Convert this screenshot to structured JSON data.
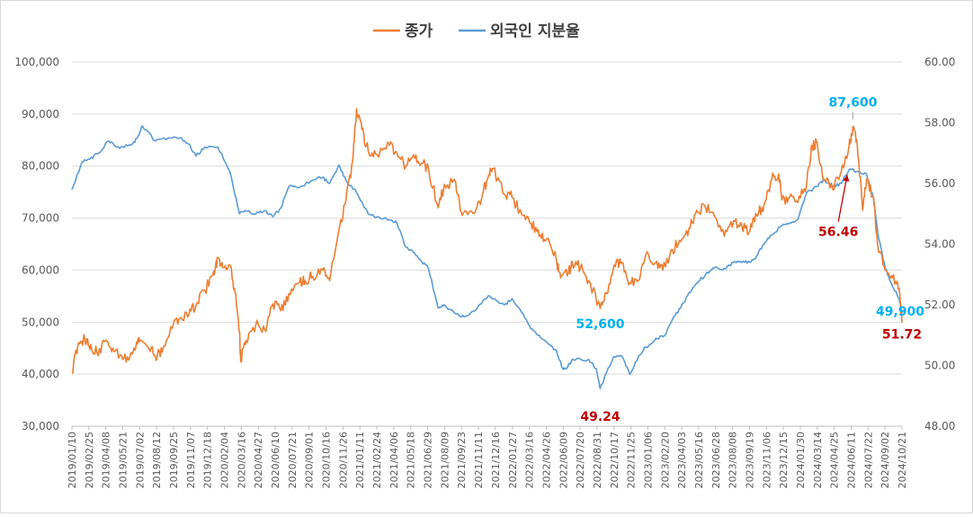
{
  "chart_data": {
    "type": "line",
    "title": "",
    "legend_position": "top",
    "grid": true,
    "series": [
      {
        "name": "종가",
        "axis": "left",
        "color": "#ed7d31",
        "points": [
          [
            "2019/01/10",
            40200
          ],
          [
            "2019/01/25",
            45500
          ],
          [
            "2019/02/12",
            46800
          ],
          [
            "2019/02/25",
            44800
          ],
          [
            "2019/03/15",
            44200
          ],
          [
            "2019/04/08",
            46500
          ],
          [
            "2019/04/25",
            45000
          ],
          [
            "2019/05/21",
            42800
          ],
          [
            "2019/06/10",
            44000
          ],
          [
            "2019/06/25",
            46000
          ],
          [
            "2019/07/02",
            46200
          ],
          [
            "2019/07/25",
            45200
          ],
          [
            "2019/08/12",
            43500
          ],
          [
            "2019/08/30",
            44200
          ],
          [
            "2019/09/25",
            48800
          ],
          [
            "2019/10/15",
            50800
          ],
          [
            "2019/11/07",
            51500
          ],
          [
            "2019/11/25",
            53200
          ],
          [
            "2019/12/18",
            56000
          ],
          [
            "2020/01/10",
            59800
          ],
          [
            "2020/01/20",
            62300
          ],
          [
            "2020/02/04",
            60500
          ],
          [
            "2020/02/20",
            61000
          ],
          [
            "2020/03/05",
            55500
          ],
          [
            "2020/03/16",
            48000
          ],
          [
            "2020/03/19",
            42500
          ],
          [
            "2020/04/02",
            46500
          ],
          [
            "2020/04/27",
            49500
          ],
          [
            "2020/05/20",
            48500
          ],
          [
            "2020/06/10",
            53500
          ],
          [
            "2020/06/30",
            52200
          ],
          [
            "2020/07/21",
            55500
          ],
          [
            "2020/08/15",
            57500
          ],
          [
            "2020/09/01",
            58000
          ],
          [
            "2020/09/20",
            58800
          ],
          [
            "2020/10/16",
            60000
          ],
          [
            "2020/11/03",
            58000
          ],
          [
            "2020/11/26",
            67500
          ],
          [
            "2020/12/15",
            73500
          ],
          [
            "2021/01/01",
            81000
          ],
          [
            "2021/01/11",
            91000
          ],
          [
            "2021/01/25",
            87000
          ],
          [
            "2021/02/10",
            83000
          ],
          [
            "2021/03/05",
            82200
          ],
          [
            "2021/04/06",
            84000
          ],
          [
            "2021/04/25",
            82500
          ],
          [
            "2021/05/18",
            80000
          ],
          [
            "2021/06/10",
            81500
          ],
          [
            "2021/06/29",
            80500
          ],
          [
            "2021/07/15",
            79500
          ],
          [
            "2021/08/09",
            72000
          ],
          [
            "2021/08/25",
            76500
          ],
          [
            "2021/09/23",
            77000
          ],
          [
            "2021/10/10",
            70500
          ],
          [
            "2021/11/11",
            71000
          ],
          [
            "2021/12/01",
            74500
          ],
          [
            "2021/12/16",
            78000
          ],
          [
            "2021/12/28",
            79500
          ],
          [
            "2022/01/27",
            74500
          ],
          [
            "2022/02/15",
            74000
          ],
          [
            "2022/03/16",
            70500
          ],
          [
            "2022/04/05",
            69000
          ],
          [
            "2022/04/26",
            66500
          ],
          [
            "2022/05/15",
            66000
          ],
          [
            "2022/06/09",
            62000
          ],
          [
            "2022/06/20",
            58500
          ],
          [
            "2022/07/10",
            59500
          ],
          [
            "2022/07/20",
            61500
          ],
          [
            "2022/08/10",
            60500
          ],
          [
            "2022/08/31",
            58000
          ],
          [
            "2022/09/30",
            52600
          ],
          [
            "2022/10/17",
            55500
          ],
          [
            "2022/11/05",
            61000
          ],
          [
            "2022/11/25",
            61500
          ],
          [
            "2022/12/15",
            57500
          ],
          [
            "2023/01/06",
            58000
          ],
          [
            "2023/01/25",
            63000
          ],
          [
            "2023/02/20",
            61500
          ],
          [
            "2023/03/10",
            60000
          ],
          [
            "2023/04/03",
            64000
          ],
          [
            "2023/04/25",
            65500
          ],
          [
            "2023/05/16",
            68000
          ],
          [
            "2023/06/05",
            71500
          ],
          [
            "2023/06/28",
            72000
          ],
          [
            "2023/07/20",
            70500
          ],
          [
            "2023/08/15",
            66500
          ],
          [
            "2023/09/08",
            69500
          ],
          [
            "2023/09/29",
            68500
          ],
          [
            "2023/10/20",
            67500
          ],
          [
            "2023/11/06",
            70500
          ],
          [
            "2023/11/25",
            72500
          ],
          [
            "2023/12/15",
            77500
          ],
          [
            "2024/01/02",
            78500
          ],
          [
            "2024/01/10",
            73500
          ],
          [
            "2024/01/30",
            74000
          ],
          [
            "2024/02/20",
            73000
          ],
          [
            "2024/03/14",
            76500
          ],
          [
            "2024/03/28",
            84000
          ],
          [
            "2024/04/10",
            84500
          ],
          [
            "2024/04/25",
            77500
          ],
          [
            "2024/05/20",
            75500
          ],
          [
            "2024/06/11",
            79000
          ],
          [
            "2024/07/01",
            84000
          ],
          [
            "2024/07/11",
            87600
          ],
          [
            "2024/07/22",
            84000
          ],
          [
            "2024/08/05",
            71500
          ],
          [
            "2024/08/15",
            77500
          ],
          [
            "2024/09/02",
            74000
          ],
          [
            "2024/09/12",
            65000
          ],
          [
            "2024/10/02",
            60000
          ],
          [
            "2024/10/21",
            58500
          ],
          [
            "2024/11/07",
            56500
          ],
          [
            "2024/11/14",
            49900
          ]
        ]
      },
      {
        "name": "외국인 지분율",
        "axis": "right",
        "color": "#5b9bd5",
        "points": [
          [
            "2019/01/10",
            55.8
          ],
          [
            "2019/02/05",
            56.7
          ],
          [
            "2019/02/25",
            56.8
          ],
          [
            "2019/03/20",
            57.0
          ],
          [
            "2019/04/15",
            57.4
          ],
          [
            "2019/05/05",
            57.2
          ],
          [
            "2019/05/21",
            57.2
          ],
          [
            "2019/06/15",
            57.3
          ],
          [
            "2019/07/02",
            57.6
          ],
          [
            "2019/07/10",
            57.9
          ],
          [
            "2019/08/12",
            57.4
          ],
          [
            "2019/09/15",
            57.5
          ],
          [
            "2019/10/15",
            57.5
          ],
          [
            "2019/11/07",
            57.3
          ],
          [
            "2019/11/25",
            56.9
          ],
          [
            "2019/12/18",
            57.2
          ],
          [
            "2020/01/20",
            57.2
          ],
          [
            "2020/02/20",
            56.4
          ],
          [
            "2020/03/16",
            55.0
          ],
          [
            "2020/04/01",
            55.1
          ],
          [
            "2020/04/27",
            55.0
          ],
          [
            "2020/05/20",
            55.1
          ],
          [
            "2020/06/10",
            54.9
          ],
          [
            "2020/07/01",
            55.2
          ],
          [
            "2020/07/21",
            55.9
          ],
          [
            "2020/08/20",
            55.9
          ],
          [
            "2020/09/20",
            56.1
          ],
          [
            "2020/10/16",
            56.2
          ],
          [
            "2020/11/03",
            56.0
          ],
          [
            "2020/11/26",
            56.6
          ],
          [
            "2020/12/15",
            56.1
          ],
          [
            "2021/01/11",
            55.7
          ],
          [
            "2021/02/10",
            55.0
          ],
          [
            "2021/03/05",
            54.9
          ],
          [
            "2021/04/06",
            54.8
          ],
          [
            "2021/04/25",
            54.7
          ],
          [
            "2021/05/18",
            53.9
          ],
          [
            "2021/06/10",
            53.7
          ],
          [
            "2021/06/29",
            53.4
          ],
          [
            "2021/07/15",
            53.2
          ],
          [
            "2021/08/09",
            51.9
          ],
          [
            "2021/08/25",
            52.0
          ],
          [
            "2021/09/23",
            51.7
          ],
          [
            "2021/10/15",
            51.6
          ],
          [
            "2021/11/11",
            51.8
          ],
          [
            "2021/12/16",
            52.3
          ],
          [
            "2022/01/10",
            52.1
          ],
          [
            "2022/01/27",
            52.0
          ],
          [
            "2022/02/15",
            52.2
          ],
          [
            "2022/03/16",
            51.7
          ],
          [
            "2022/04/05",
            51.2
          ],
          [
            "2022/04/26",
            51.0
          ],
          [
            "2022/05/20",
            50.7
          ],
          [
            "2022/06/09",
            50.5
          ],
          [
            "2022/06/25",
            49.9
          ],
          [
            "2022/07/05",
            49.9
          ],
          [
            "2022/07/20",
            50.2
          ],
          [
            "2022/08/31",
            50.2
          ],
          [
            "2022/09/20",
            49.9
          ],
          [
            "2022/09/30",
            49.24
          ],
          [
            "2022/10/17",
            49.8
          ],
          [
            "2022/11/05",
            50.3
          ],
          [
            "2022/11/25",
            50.3
          ],
          [
            "2022/12/15",
            49.7
          ],
          [
            "2023/01/06",
            50.3
          ],
          [
            "2023/01/25",
            50.6
          ],
          [
            "2023/02/20",
            50.9
          ],
          [
            "2023/03/15",
            51.0
          ],
          [
            "2023/04/03",
            51.5
          ],
          [
            "2023/04/25",
            51.9
          ],
          [
            "2023/05/16",
            52.4
          ],
          [
            "2023/06/05",
            52.7
          ],
          [
            "2023/06/28",
            53.0
          ],
          [
            "2023/07/20",
            53.2
          ],
          [
            "2023/08/15",
            53.2
          ],
          [
            "2023/09/08",
            53.4
          ],
          [
            "2023/09/29",
            53.4
          ],
          [
            "2023/10/20",
            53.4
          ],
          [
            "2023/11/06",
            53.6
          ],
          [
            "2023/11/25",
            54.0
          ],
          [
            "2023/12/15",
            54.3
          ],
          [
            "2024/01/10",
            54.6
          ],
          [
            "2024/01/30",
            54.7
          ],
          [
            "2024/02/20",
            54.8
          ],
          [
            "2024/03/14",
            55.7
          ],
          [
            "2024/04/10",
            55.9
          ],
          [
            "2024/04/25",
            56.1
          ],
          [
            "2024/05/20",
            55.9
          ],
          [
            "2024/06/11",
            56.0
          ],
          [
            "2024/07/01",
            56.46
          ],
          [
            "2024/07/22",
            56.4
          ],
          [
            "2024/08/15",
            56.3
          ],
          [
            "2024/09/02",
            55.5
          ],
          [
            "2024/09/15",
            54.2
          ],
          [
            "2024/10/02",
            53.2
          ],
          [
            "2024/10/21",
            52.6
          ],
          [
            "2024/11/07",
            52.2
          ],
          [
            "2024/11/14",
            51.72
          ]
        ]
      }
    ],
    "y_left": {
      "ylim": [
        30000,
        100000
      ],
      "ticks": [
        "30,000",
        "40,000",
        "50,000",
        "60,000",
        "70,000",
        "80,000",
        "90,000",
        "100,000"
      ],
      "tick_values": [
        30000,
        40000,
        50000,
        60000,
        70000,
        80000,
        90000,
        100000
      ]
    },
    "y_right": {
      "ylim": [
        48.0,
        60.0
      ],
      "ticks": [
        "48.00",
        "50.00",
        "52.00",
        "54.00",
        "56.00",
        "58.00",
        "60.00"
      ],
      "tick_values": [
        48,
        50,
        52,
        54,
        56,
        58,
        60
      ]
    },
    "x_range": [
      "2019/01/10",
      "2024/11/14"
    ],
    "x_ticks": [
      "2019/01/10",
      "2019/02/25",
      "2019/04/08",
      "2019/05/21",
      "2019/07/02",
      "2019/08/12",
      "2019/09/25",
      "2019/11/07",
      "2019/12/18",
      "2020/02/04",
      "2020/03/16",
      "2020/04/27",
      "2020/06/10",
      "2020/07/21",
      "2020/09/01",
      "2020/10/16",
      "2020/11/26",
      "2021/01/11",
      "2021/02/24",
      "2021/04/06",
      "2021/05/18",
      "2021/06/29",
      "2021/08/09",
      "2021/09/23",
      "2021/11/11",
      "2021/12/16",
      "2022/01/27",
      "2022/03/16",
      "2022/04/26",
      "2022/06/09",
      "2022/07/20",
      "2022/08/31",
      "2022/10/17",
      "2022/11/25",
      "2023/01/06",
      "2023/02/20",
      "2023/04/03",
      "2023/05/16",
      "2023/06/28",
      "2023/08/08",
      "2023/09/19",
      "2023/11/06",
      "2023/12/15",
      "2024/01/30",
      "2024/03/14",
      "2024/04/25",
      "2024/06/11",
      "2024/07/22",
      "2024/09/02",
      "2024/10/21"
    ],
    "annotations": [
      {
        "text": "87,600",
        "date": "2024/07/11",
        "value": 87600,
        "axis": "left",
        "color": "#00b0f0",
        "leader": true
      },
      {
        "text": "52,600",
        "date": "2022/09/30",
        "value": 52600,
        "axis": "left",
        "color": "#00b0f0",
        "leader": false
      },
      {
        "text": "49.24",
        "date": "2022/09/30",
        "value": 49.24,
        "axis": "right",
        "color": "#c00000",
        "leader": false
      },
      {
        "text": "56.46",
        "date": "2024/07/01",
        "value": 56.46,
        "axis": "right",
        "color": "#c00000",
        "leader": true
      },
      {
        "text": "49,900",
        "date": "2024/11/14",
        "value": 49900,
        "axis": "left",
        "color": "#00b0f0",
        "leader": false
      },
      {
        "text": "51.72",
        "date": "2024/11/14",
        "value": 51.72,
        "axis": "right",
        "color": "#c00000",
        "leader": false
      }
    ]
  }
}
